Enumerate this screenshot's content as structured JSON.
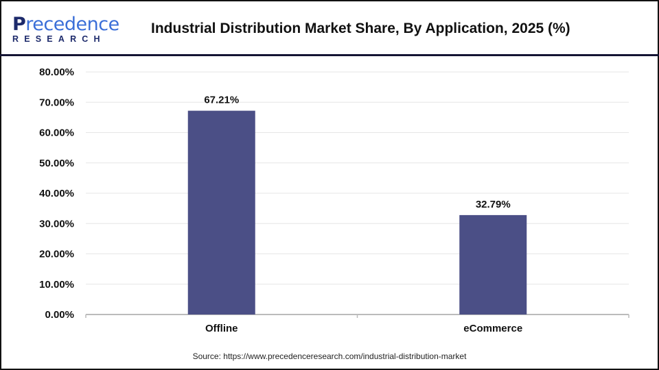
{
  "header": {
    "logo_text_main": "Precedence",
    "logo_text_sub": "RESEARCH",
    "title": "Industrial Distribution Market Share, By Application, 2025 (%)"
  },
  "source": "Source: https://www.precedenceresearch.com/industrial-distribution-market",
  "chart_data": {
    "type": "bar",
    "title": "Industrial Distribution Market Share, By Application, 2025 (%)",
    "categories": [
      "Offline",
      "eCommerce"
    ],
    "values": [
      67.21,
      32.79
    ],
    "data_labels": [
      "67.21%",
      "32.79%"
    ],
    "ylim": [
      0,
      80
    ],
    "yticks": [
      "0.00%",
      "10.00%",
      "20.00%",
      "30.00%",
      "40.00%",
      "50.00%",
      "60.00%",
      "70.00%",
      "80.00%"
    ],
    "grid": true,
    "bar_color": "#4b4f86",
    "xlabel": "",
    "ylabel": ""
  }
}
